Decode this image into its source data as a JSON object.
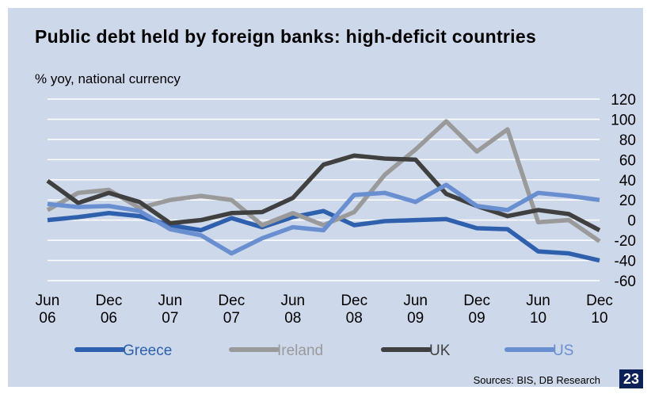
{
  "chart_data": {
    "type": "line",
    "title": "Public debt held by foreign banks: high-deficit countries",
    "subtitle": "% yoy, national currency",
    "source": "Sources: BIS, DB Research",
    "page_number": "23",
    "categories": [
      "Jun 06",
      null,
      "Dec 06",
      null,
      "Jun 07",
      null,
      "Dec 07",
      null,
      "Jun 08",
      null,
      "Dec 08",
      null,
      "Jun 09",
      null,
      "Dec 09",
      null,
      "Jun 10",
      null,
      "Dec 10"
    ],
    "series": [
      {
        "name": "Greece",
        "color": "#2e60ad",
        "values": [
          0,
          3,
          7,
          4,
          -5,
          -10,
          2,
          -7,
          3,
          9,
          -5,
          -1,
          0,
          1,
          -8,
          -9,
          -31,
          -33,
          -40
        ]
      },
      {
        "name": "Ireland",
        "color": "#9a9a9a",
        "values": [
          10,
          27,
          30,
          12,
          20,
          24,
          20,
          -5,
          7,
          -5,
          8,
          45,
          70,
          98,
          68,
          90,
          -2,
          0,
          -21
        ]
      },
      {
        "name": "UK",
        "color": "#404040",
        "values": [
          39,
          17,
          27,
          18,
          -3,
          0,
          7,
          8,
          22,
          55,
          64,
          61,
          60,
          26,
          14,
          4,
          10,
          6,
          -10
        ]
      },
      {
        "name": "US",
        "color": "#6a8fd0",
        "values": [
          16,
          13,
          14,
          9,
          -9,
          -15,
          -33,
          -18,
          -7,
          -10,
          25,
          27,
          18,
          35,
          14,
          10,
          27,
          24,
          20
        ]
      }
    ],
    "ylim": [
      -60,
      120
    ],
    "yticks": [
      -60,
      -40,
      -20,
      0,
      20,
      40,
      60,
      80,
      100,
      120
    ],
    "grid": true
  }
}
